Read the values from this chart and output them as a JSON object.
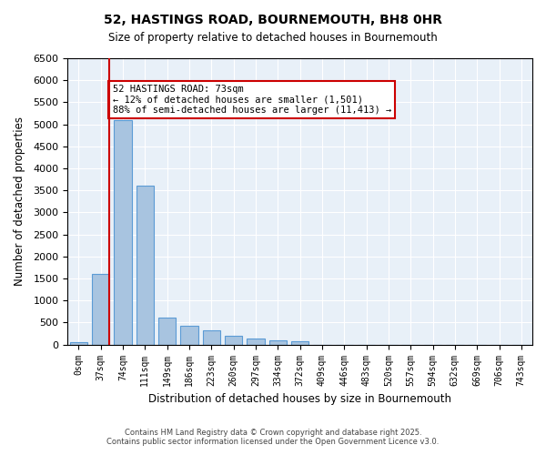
{
  "title_line1": "52, HASTINGS ROAD, BOURNEMOUTH, BH8 0HR",
  "title_line2": "Size of property relative to detached houses in Bournemouth",
  "xlabel": "Distribution of detached houses by size in Bournemouth",
  "ylabel": "Number of detached properties",
  "bar_color": "#a8c4e0",
  "bar_edge_color": "#5b9bd5",
  "bg_color": "#e8f0f8",
  "grid_color": "#ffffff",
  "categories": [
    "0sqm",
    "37sqm",
    "74sqm",
    "111sqm",
    "149sqm",
    "186sqm",
    "223sqm",
    "260sqm",
    "297sqm",
    "334sqm",
    "372sqm",
    "409sqm",
    "446sqm",
    "483sqm",
    "520sqm",
    "557sqm",
    "594sqm",
    "632sqm",
    "669sqm",
    "706sqm",
    "743sqm"
  ],
  "values": [
    50,
    1600,
    5100,
    3600,
    620,
    420,
    330,
    200,
    130,
    100,
    70,
    0,
    0,
    0,
    0,
    0,
    0,
    0,
    0,
    0,
    0
  ],
  "ylim": [
    0,
    6500
  ],
  "yticks": [
    0,
    500,
    1000,
    1500,
    2000,
    2500,
    3000,
    3500,
    4000,
    4500,
    5000,
    5500,
    6000,
    6500
  ],
  "property_line_x": 1,
  "annotation_text": "52 HASTINGS ROAD: 73sqm\n← 12% of detached houses are smaller (1,501)\n88% of semi-detached houses are larger (11,413) →",
  "annotation_box_color": "#cc0000",
  "footer_line1": "Contains HM Land Registry data © Crown copyright and database right 2025.",
  "footer_line2": "Contains public sector information licensed under the Open Government Licence v3.0."
}
